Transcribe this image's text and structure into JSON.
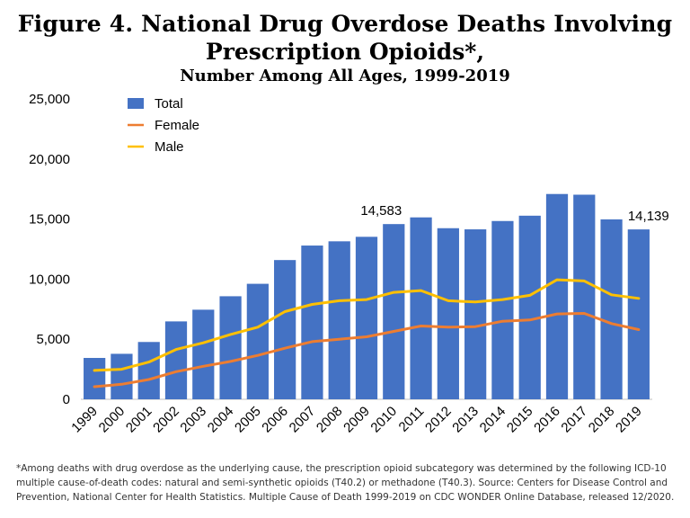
{
  "header": {
    "title_line1": "Figure 4. National Drug Overdose Deaths Involving",
    "title_line2": "Prescription Opioids*,",
    "subtitle": "Number Among All Ages, 1999-2019"
  },
  "footnote": "*Among deaths with drug overdose as the underlying cause, the prescription opioid subcategory was determined by the following ICD-10 multiple cause-of-death codes: natural and semi-synthetic opioids (T40.2) or methadone (T40.3). Source: Centers for Disease Control and Prevention, National Center for Health Statistics. Multiple Cause of Death 1999-2019 on CDC WONDER Online Database, released 12/2020.",
  "chart_data": {
    "type": "bar",
    "title": "Figure 4. National Drug Overdose Deaths Involving Prescription Opioids*,",
    "subtitle": "Number Among All Ages, 1999-2019",
    "categories": [
      "1999",
      "2000",
      "2001",
      "2002",
      "2003",
      "2004",
      "2005",
      "2006",
      "2007",
      "2008",
      "2009",
      "2010",
      "2011",
      "2012",
      "2013",
      "2014",
      "2015",
      "2016",
      "2017",
      "2018",
      "2019"
    ],
    "ylim": [
      0,
      25000
    ],
    "yticks": [
      "0",
      "5,000",
      "10,000",
      "15,000",
      "20,000",
      "25,000"
    ],
    "ytick_values": [
      0,
      5000,
      10000,
      15000,
      20000,
      25000
    ],
    "grid": false,
    "legend_position": "top-left",
    "series": [
      {
        "name": "Total",
        "type": "bar",
        "color": "#4472c4",
        "values": [
          3442,
          3785,
          4770,
          6483,
          7456,
          8577,
          9612,
          11589,
          12796,
          13149,
          13523,
          14583,
          15140,
          14240,
          14145,
          14838,
          15281,
          17087,
          17029,
          14975,
          14139
        ]
      },
      {
        "name": "Female",
        "type": "line",
        "color": "#ed7d31",
        "values": [
          1050,
          1250,
          1650,
          2300,
          2750,
          3150,
          3650,
          4250,
          4800,
          5000,
          5200,
          5650,
          6100,
          6000,
          6050,
          6500,
          6600,
          7100,
          7150,
          6300,
          5800
        ]
      },
      {
        "name": "Male",
        "type": "line",
        "color": "#ffc000",
        "values": [
          2400,
          2500,
          3100,
          4150,
          4700,
          5400,
          6000,
          7300,
          7900,
          8200,
          8300,
          8900,
          9050,
          8200,
          8100,
          8300,
          8650,
          9950,
          9850,
          8700,
          8400
        ]
      }
    ],
    "data_labels": [
      {
        "category": "2010",
        "text": "14,583"
      },
      {
        "category": "2019",
        "text": "14,139"
      }
    ]
  }
}
